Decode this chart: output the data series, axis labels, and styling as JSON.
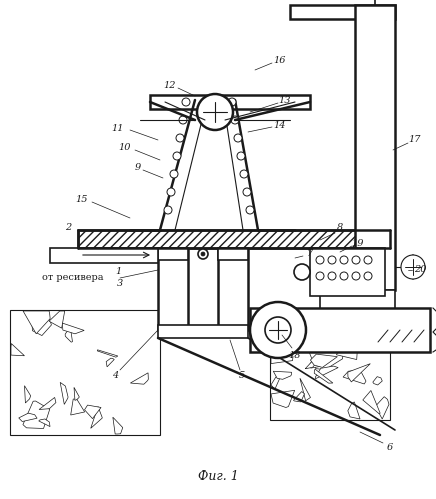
{
  "title": "Фиг. 1",
  "background": "#ffffff",
  "line_color": "#1a1a1a",
  "figsize": [
    4.36,
    4.99
  ],
  "dpi": 100
}
